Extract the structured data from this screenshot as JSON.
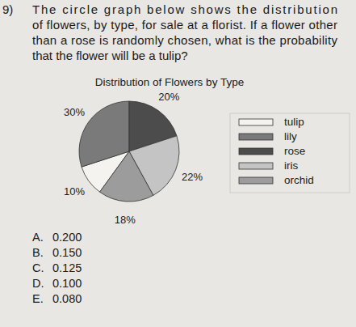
{
  "question": {
    "number": "9)",
    "lines": [
      "The circle graph below shows the distribution",
      "of flowers, by type, for sale at a florist. If a flower other",
      "than a rose is randomly chosen, what is the probability",
      "that the flower will be a tulip?"
    ]
  },
  "chart_data": {
    "type": "pie",
    "title": "Distribution of Flowers by Type",
    "categories": [
      "tulip",
      "lily",
      "rose",
      "iris",
      "orchid"
    ],
    "values": [
      10,
      30,
      20,
      22,
      18
    ],
    "value_labels": [
      "10%",
      "30%",
      "20%",
      "22%",
      "18%"
    ],
    "colors": [
      "#f4f3f0",
      "#7a7a7a",
      "#4c4c4c",
      "#c4c4c4",
      "#9c9c9c"
    ],
    "data_labels": true,
    "legend": "right"
  },
  "choices": [
    {
      "letter": "A.",
      "value": "0.200"
    },
    {
      "letter": "B.",
      "value": "0.150"
    },
    {
      "letter": "C.",
      "value": "0.125"
    },
    {
      "letter": "D.",
      "value": "0.100"
    },
    {
      "letter": "E.",
      "value": "0.080"
    }
  ]
}
